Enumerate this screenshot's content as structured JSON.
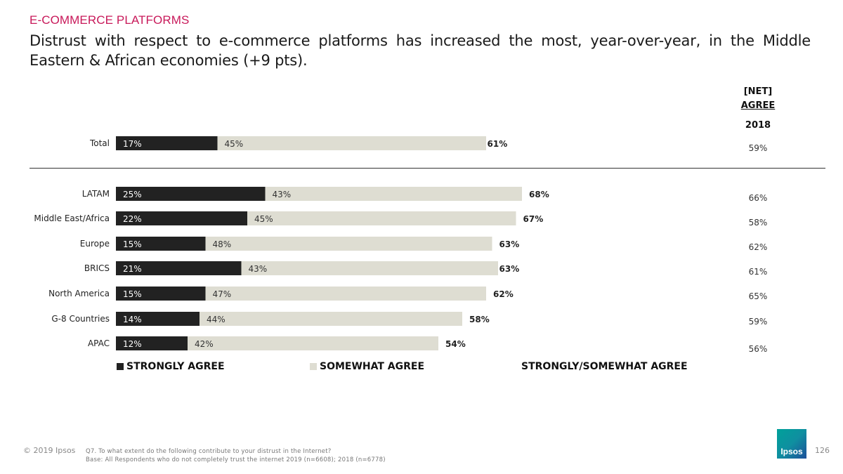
{
  "header": {
    "section": "E-COMMERCE PLATFORMS",
    "headline": "Distrust with respect to e-commerce platforms has increased the most, year-over-year, in the Middle Eastern & African economies (+9 pts)."
  },
  "net_header": {
    "line1": "[NET]",
    "line2": "AGREE",
    "year": "2018"
  },
  "colors": {
    "strong": "#222222",
    "somewhat": "#deddd2",
    "accent": "#c8195a"
  },
  "chart_data": {
    "type": "bar",
    "orientation": "horizontal-stacked",
    "xlim": [
      0,
      100
    ],
    "categories": [
      "Total",
      "LATAM",
      "Middle East/Africa",
      "Europe",
      "BRICS",
      "North America",
      "G-8 Countries",
      "APAC"
    ],
    "series": [
      {
        "name": "STRONGLY AGREE",
        "values": [
          17,
          25,
          22,
          15,
          21,
          15,
          14,
          12
        ]
      },
      {
        "name": "SOMEWHAT AGREE",
        "values": [
          45,
          43,
          45,
          48,
          43,
          47,
          44,
          42
        ]
      }
    ],
    "totals_label": "STRONGLY/SOMEWHAT AGREE",
    "totals": [
      61,
      68,
      67,
      63,
      63,
      62,
      58,
      54
    ],
    "net_2018": [
      59,
      66,
      58,
      62,
      61,
      65,
      59,
      56
    ]
  },
  "legend": {
    "strong": "STRONGLY AGREE",
    "somewhat": "SOMEWHAT AGREE",
    "total": "STRONGLY/SOMEWHAT AGREE"
  },
  "footer": {
    "copyright": "© 2019 Ipsos",
    "question": "Q7.  To what extent do the following contribute to your distrust in the Internet?",
    "base": "Base: All Respondents who do not completely trust the internet 2019 (n=6608); 2018 (n=6778)",
    "logo": "Ipsos",
    "page": "126"
  }
}
